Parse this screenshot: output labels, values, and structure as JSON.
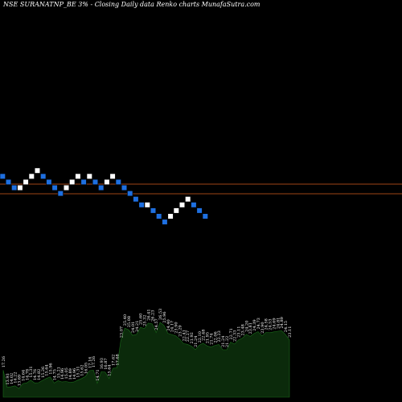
{
  "header": {
    "title": "NSE SURANATNP_BE 3% - Closing Daily data  Renko  charts MunafaSutra.com"
  },
  "colors": {
    "background": "#000000",
    "up_brick": "#ffffff",
    "down_brick": "#1e6fe0",
    "brick_outline": "#000000",
    "ref_line": "#d35a1e",
    "volume_fill": "#0b2a0b",
    "volume_line": "#1a6b1a",
    "label": "#ffffff"
  },
  "chart_data": {
    "type": "renko",
    "brick_percent": 3,
    "price_series_levels": [
      17,
      16,
      15,
      15,
      16,
      17,
      18,
      17,
      16,
      15,
      14,
      15,
      16,
      17,
      16,
      17,
      16,
      15,
      16,
      17,
      16,
      15,
      14,
      13,
      12,
      12,
      11,
      10,
      9,
      10,
      11,
      12,
      13,
      12,
      11,
      10
    ],
    "price_series_direction": [
      "down",
      "down",
      "down",
      "up",
      "up",
      "up",
      "up",
      "down",
      "down",
      "down",
      "down",
      "up",
      "up",
      "up",
      "down",
      "up",
      "down",
      "down",
      "up",
      "up",
      "down",
      "down",
      "down",
      "down",
      "down",
      "up",
      "down",
      "down",
      "down",
      "up",
      "up",
      "up",
      "up",
      "down",
      "down",
      "down"
    ],
    "reference_lines": [
      229,
      241
    ],
    "volume_values": [
      17.26,
      13.93,
      14.02,
      14.22,
      13.69,
      14.64,
      14.78,
      15.31,
      14.76,
      14.82,
      15.26,
      15.64,
      15.96,
      14.75,
      15.21,
      14.96,
      15.05,
      14.89,
      14.96,
      15.31,
      15.62,
      16.05,
      17.16,
      17.26,
      14.71,
      16.93,
      16.87,
      15.64,
      17.62,
      17.68,
      23.07,
      25.4,
      25.08,
      24.01,
      24.21,
      25.6,
      25.32,
      26.41,
      26.23,
      24.57,
      26.53,
      25.96,
      24.4,
      24.17,
      23.9,
      23.29,
      22.41,
      22.27,
      21.92,
      21.24,
      22.1,
      22.48,
      21.95,
      21.74,
      22.06,
      22.23,
      21.24,
      21.22,
      22.71,
      22.33,
      23.11,
      23.48,
      24.2,
      23.81,
      24.39,
      24.73,
      23.9,
      24.58,
      24.53,
      24.69,
      24.81,
      24.89,
      24.15,
      23.11
    ],
    "ylim": [
      9,
      17
    ]
  }
}
